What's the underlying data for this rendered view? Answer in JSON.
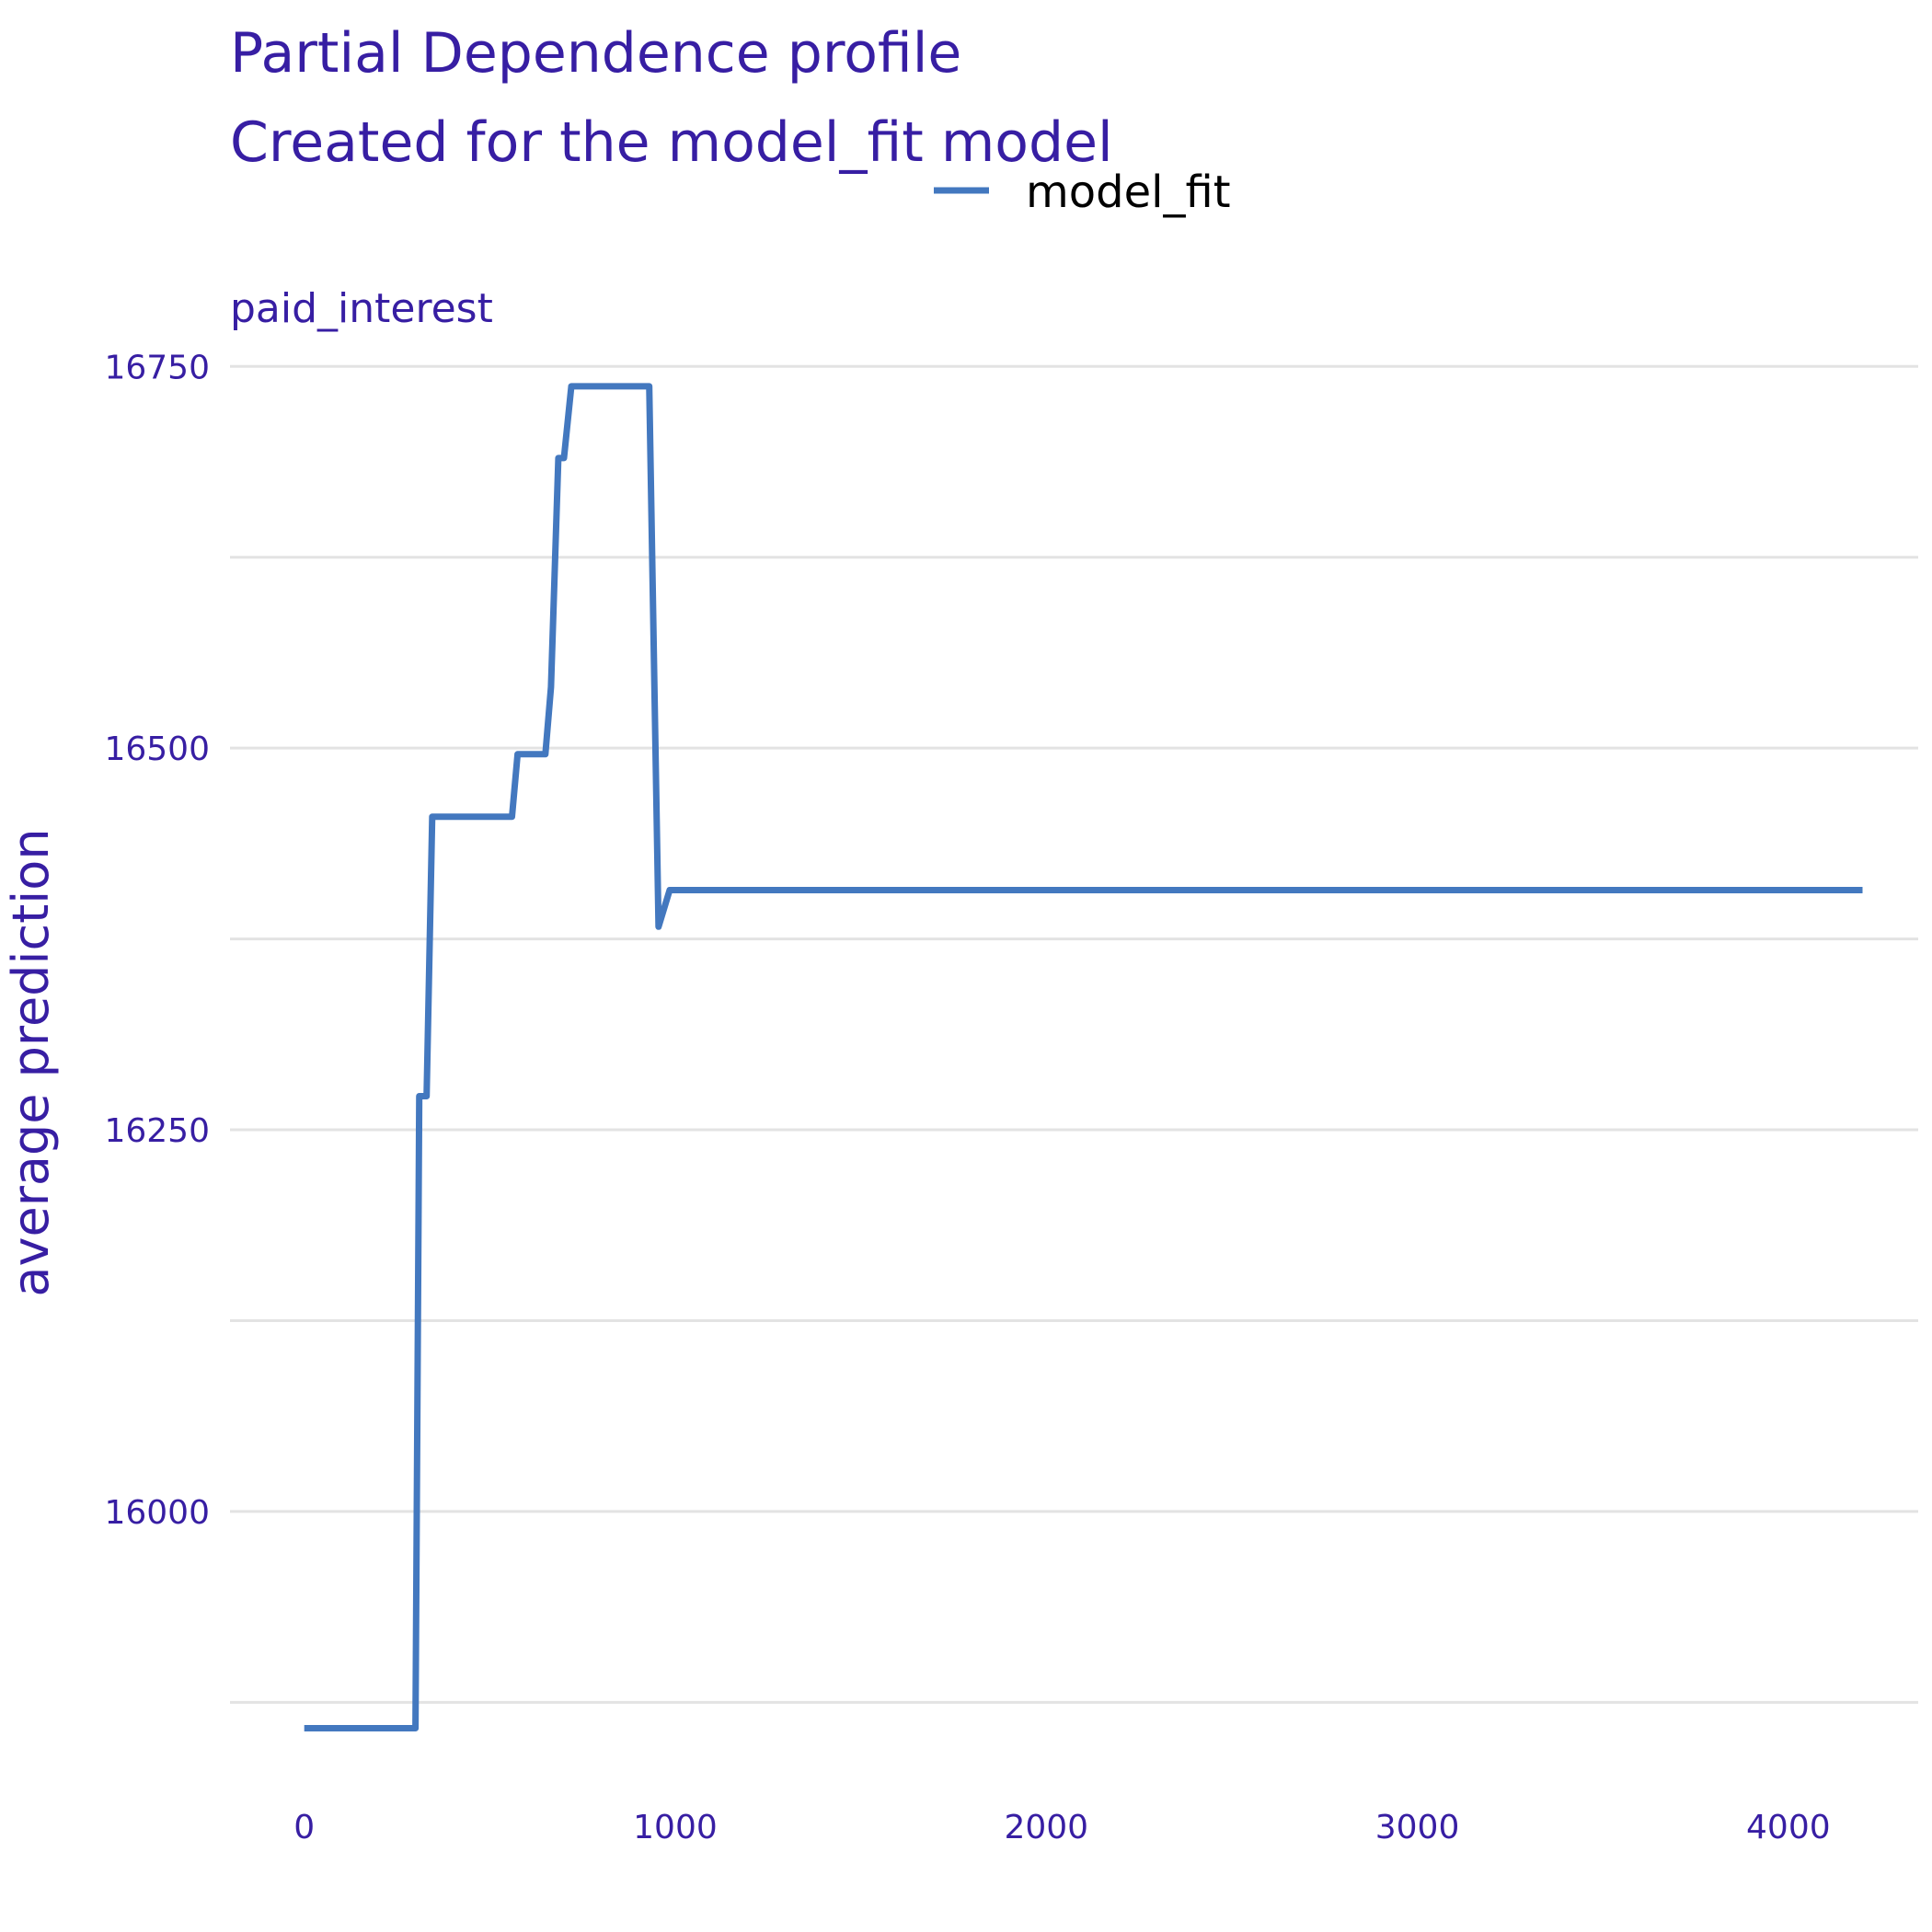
{
  "chart_data": {
    "type": "line",
    "title": "Partial Dependence profile",
    "subtitle": "Created for the model_fit model",
    "panel_label": "paid_interest",
    "xlabel": "",
    "ylabel": "average prediction",
    "xlim": [
      -200,
      4350
    ],
    "ylim": [
      15830,
      16755
    ],
    "x_ticks": [
      0,
      1000,
      2000,
      3000,
      4000
    ],
    "y_ticks": [
      16000,
      16250,
      16500,
      16750
    ],
    "y_gridlines": [
      15875,
      16000,
      16125,
      16250,
      16375,
      16500,
      16625,
      16750
    ],
    "grid": true,
    "legend_position": "top",
    "colors": {
      "line": "#4378bf",
      "text": "#371ea3",
      "grid": "#e3e3e3"
    },
    "series": [
      {
        "name": "model_fit",
        "x": [
          0,
          300,
          310,
          330,
          345,
          560,
          575,
          650,
          665,
          685,
          700,
          720,
          930,
          955,
          985,
          4200
        ],
        "y": [
          15858,
          15858,
          16272,
          16272,
          16455,
          16455,
          16496,
          16496,
          16540,
          16690,
          16690,
          16737,
          16737,
          16383,
          16407,
          16407
        ]
      }
    ]
  }
}
